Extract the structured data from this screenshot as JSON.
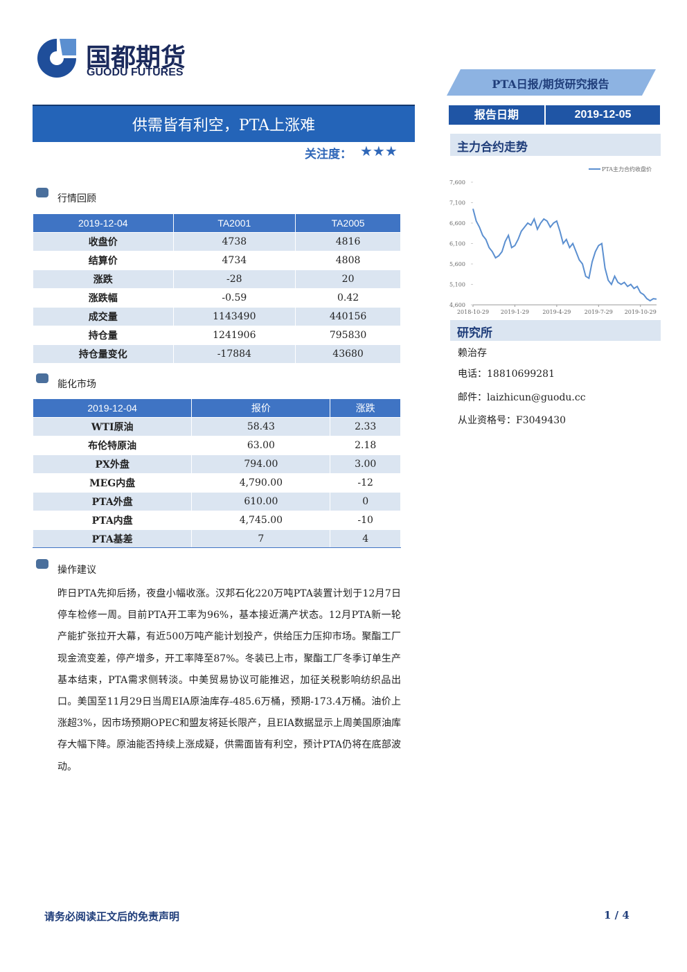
{
  "header": {
    "logo_cn": "国都期货",
    "logo_en": "GUODU FUTURES",
    "banner": "PTA日报/期货研究报告",
    "date_label": "报告日期",
    "date": "2019-12-05",
    "title": "供需皆有利空，PTA上涨难",
    "attention_label": "关注度：",
    "attention_stars": "★★★"
  },
  "market_review": {
    "section": "行情回顾",
    "header": [
      "2019-12-04",
      "TA2001",
      "TA2005"
    ],
    "rows": [
      [
        "收盘价",
        "4738",
        "4816"
      ],
      [
        "结算价",
        "4734",
        "4808"
      ],
      [
        "涨跌",
        "-28",
        "20"
      ],
      [
        "涨跌幅",
        "-0.59",
        "0.42"
      ],
      [
        "成交量",
        "1143490",
        "440156"
      ],
      [
        "持仓量",
        "1241906",
        "795830"
      ],
      [
        "持仓量变化",
        "-17884",
        "43680"
      ]
    ]
  },
  "energy_market": {
    "section": "能化市场",
    "header": [
      "2019-12-04",
      "报价",
      "涨跌"
    ],
    "rows": [
      [
        "WTI原油",
        "58.43",
        "2.33"
      ],
      [
        "布伦特原油",
        "63.00",
        "2.18"
      ],
      [
        "PX外盘",
        "794.00",
        "3.00"
      ],
      [
        "MEG内盘",
        "4,790.00",
        "-12"
      ],
      [
        "PTA外盘",
        "610.00",
        "0"
      ],
      [
        "PTA内盘",
        "4,745.00",
        "-10"
      ],
      [
        "PTA基差",
        "7",
        "4"
      ]
    ]
  },
  "advice": {
    "section": "操作建议",
    "text": "昨日PTA先抑后扬，夜盘小幅收涨。汉邦石化220万吨PTA装置计划于12月7日停车检修一周。目前PTA开工率为96%，基本接近满产状态。12月PTA新一轮产能扩张拉开大幕，有近500万吨产能计划投产，供给压力压抑市场。聚酯工厂现金流变差，停产增多，开工率降至87%。冬装已上市，聚酯工厂冬季订单生产基本结束，PTA需求侧转淡。中美贸易协议可能推迟，加征关税影响纺织品出口。美国至11月29日当周EIA原油库存-485.6万桶，预期-173.4万桶。油价上涨超3%，因市场预期OPEC和盟友将延长限产，且EIA数据显示上周美国原油库存大幅下降。原油能否持续上涨成疑，供需面皆有利空，预计PTA仍将在底部波动。"
  },
  "chart_section": "主力合约走势",
  "chart_data": {
    "type": "line",
    "categories": [
      "2018-10-29",
      null,
      null,
      null,
      null,
      null,
      null,
      null,
      null,
      null,
      null,
      null,
      null,
      "2019-1-29",
      null,
      null,
      null,
      null,
      null,
      null,
      null,
      null,
      null,
      null,
      null,
      null,
      "2019-4-29",
      null,
      null,
      null,
      null,
      null,
      null,
      null,
      null,
      null,
      null,
      null,
      null,
      "2019-7-29",
      null,
      null,
      null,
      null,
      null,
      null,
      null,
      null,
      null,
      null,
      null,
      null,
      "2019-10-29",
      null,
      null,
      null,
      null,
      null
    ],
    "series": [
      {
        "name": "PTA主力合约收盘价",
        "color": "#5b8fd0",
        "values": [
          6950,
          6650,
          6500,
          6300,
          6200,
          6000,
          5900,
          5750,
          5800,
          5900,
          6150,
          6300,
          6000,
          6050,
          6200,
          6400,
          6500,
          6600,
          6550,
          6700,
          6450,
          6600,
          6700,
          6650,
          6500,
          6600,
          6650,
          6400,
          6100,
          6200,
          6000,
          6100,
          5900,
          5700,
          5600,
          5300,
          5250,
          5650,
          5900,
          6050,
          6100,
          5500,
          5200,
          5100,
          5300,
          5150,
          5100,
          5150,
          5050,
          5100,
          5000,
          5050,
          4900,
          4850,
          4750,
          4700,
          4750,
          4740
        ]
      }
    ],
    "ylim": [
      4600,
      7600
    ],
    "yticks": [
      {
        "value": 4600,
        "label": "4,600"
      },
      {
        "value": 5100,
        "label": "5,100"
      },
      {
        "value": 5600,
        "label": "5,600"
      },
      {
        "value": 6100,
        "label": "6,100"
      },
      {
        "value": 6600,
        "label": "6,600"
      },
      {
        "value": 7100,
        "label": "7,100"
      },
      {
        "value": 7600,
        "label": "7,600"
      }
    ],
    "legend": "top-right"
  },
  "research": {
    "title": "研究所",
    "name": "赖治存",
    "phone": "电话：18810699281",
    "email": "邮件：laizhicun@guodu.cc",
    "license": "从业资格号：F3049430"
  },
  "footer": {
    "disclaimer": "请务必阅读正文后的免责声明",
    "page": "1 / 4"
  }
}
